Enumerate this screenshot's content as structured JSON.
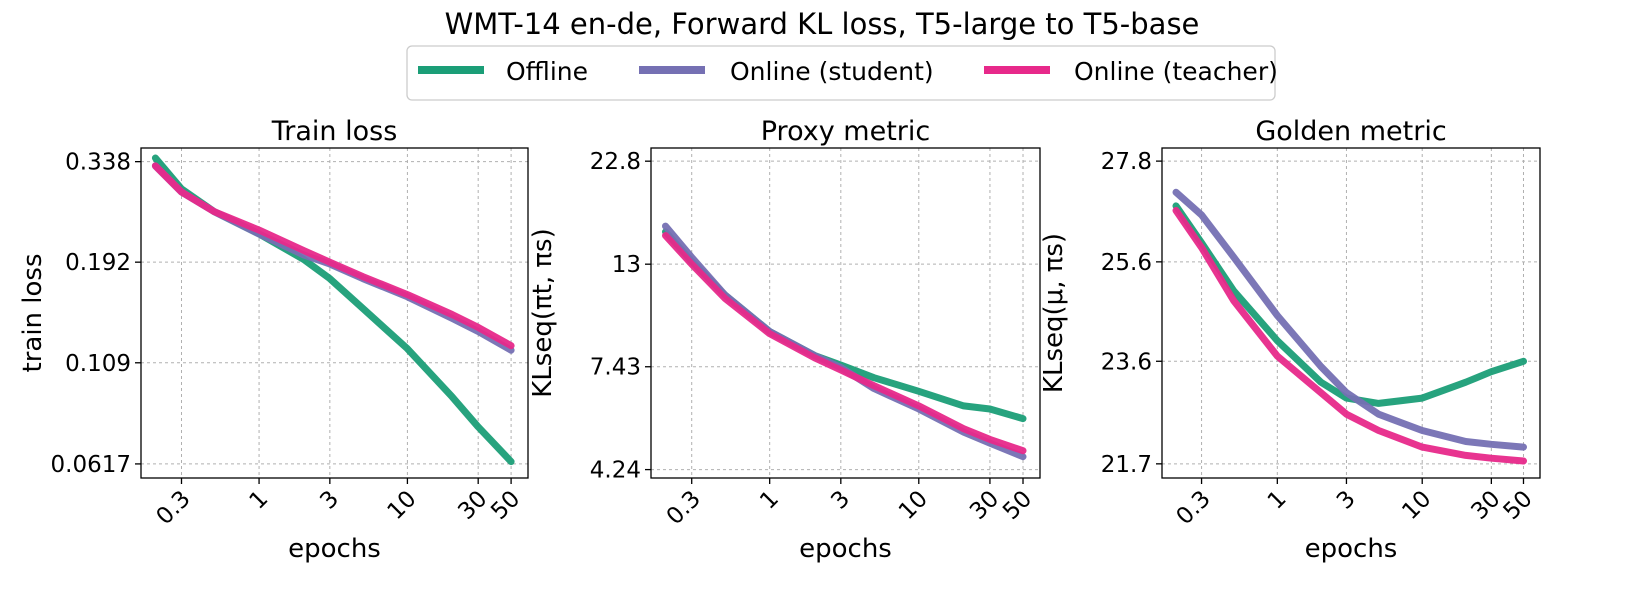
{
  "figure": {
    "title": "WMT-14 en-de, Forward KL loss, T5-large to T5-base",
    "xlabel": "epochs",
    "legend": [
      {
        "label": "Offline",
        "color": "#1b9e77"
      },
      {
        "label": "Online (student)",
        "color": "#7570b3"
      },
      {
        "label": "Online (teacher)",
        "color": "#e7298a"
      }
    ]
  },
  "chart_data": [
    {
      "type": "line",
      "title": "Train loss",
      "xlabel": "epochs",
      "ylabel": "train loss",
      "xscale": "log",
      "yscale": "log",
      "x_ticks": [
        0.3,
        1,
        3,
        10,
        30,
        50
      ],
      "x_tick_labels": [
        "0.3",
        "1",
        "3",
        "10",
        "30",
        "50"
      ],
      "y_ticks": [
        0.0617,
        0.109,
        0.192,
        0.338
      ],
      "y_tick_labels": [
        "0.0617",
        "0.109",
        "0.192",
        "0.338"
      ],
      "xlim": [
        0.16,
        65
      ],
      "ylim": [
        0.057,
        0.365
      ],
      "series": [
        {
          "name": "Offline",
          "color": "#1b9e77",
          "x": [
            0.2,
            0.3,
            0.5,
            1,
            2,
            3,
            5,
            10,
            20,
            30,
            50
          ],
          "y": [
            0.345,
            0.29,
            0.255,
            0.225,
            0.195,
            0.175,
            0.148,
            0.118,
            0.09,
            0.076,
            0.0625
          ]
        },
        {
          "name": "Online (student)",
          "color": "#7570b3",
          "x": [
            0.2,
            0.3,
            0.5,
            1,
            2,
            3,
            5,
            10,
            20,
            30,
            50
          ],
          "y": [
            0.33,
            0.285,
            0.255,
            0.225,
            0.2,
            0.19,
            0.175,
            0.158,
            0.14,
            0.13,
            0.117
          ]
        },
        {
          "name": "Online (teacher)",
          "color": "#e7298a",
          "x": [
            0.2,
            0.3,
            0.5,
            1,
            2,
            3,
            5,
            10,
            20,
            30,
            50
          ],
          "y": [
            0.33,
            0.285,
            0.255,
            0.23,
            0.205,
            0.192,
            0.177,
            0.16,
            0.143,
            0.133,
            0.12
          ]
        }
      ]
    },
    {
      "type": "line",
      "title": "Proxy metric",
      "xlabel": "epochs",
      "ylabel": "KLseq(πt, πs)",
      "xscale": "log",
      "yscale": "log",
      "x_ticks": [
        0.3,
        1,
        3,
        10,
        30,
        50
      ],
      "x_tick_labels": [
        "0.3",
        "1",
        "3",
        "10",
        "30",
        "50"
      ],
      "y_ticks": [
        4.24,
        7.43,
        13,
        22.8
      ],
      "y_tick_labels": [
        "4.24",
        "7.43",
        "13",
        "22.8"
      ],
      "xlim": [
        0.16,
        65
      ],
      "ylim": [
        4.05,
        24.5
      ],
      "series": [
        {
          "name": "Offline",
          "color": "#1b9e77",
          "x": [
            0.2,
            0.3,
            0.5,
            1,
            2,
            3,
            5,
            10,
            20,
            30,
            50
          ],
          "y": [
            15.5,
            13.2,
            11.0,
            9.0,
            7.9,
            7.5,
            7.0,
            6.5,
            6.0,
            5.9,
            5.6
          ]
        },
        {
          "name": "Online (student)",
          "color": "#7570b3",
          "x": [
            0.2,
            0.3,
            0.5,
            1,
            2,
            3,
            5,
            10,
            20,
            30,
            50
          ],
          "y": [
            16.0,
            13.5,
            11.0,
            9.0,
            7.9,
            7.4,
            6.6,
            5.9,
            5.2,
            4.9,
            4.55
          ]
        },
        {
          "name": "Online (teacher)",
          "color": "#e7298a",
          "x": [
            0.2,
            0.3,
            0.5,
            1,
            2,
            3,
            5,
            10,
            20,
            30,
            50
          ],
          "y": [
            15.2,
            13.0,
            10.8,
            8.9,
            7.8,
            7.3,
            6.7,
            6.0,
            5.3,
            5.0,
            4.7
          ]
        }
      ]
    },
    {
      "type": "line",
      "title": "Golden metric",
      "xlabel": "epochs",
      "ylabel": "KLseq(μ, πs)",
      "xscale": "log",
      "yscale": "log",
      "x_ticks": [
        0.3,
        1,
        3,
        10,
        30,
        50
      ],
      "x_tick_labels": [
        "0.3",
        "1",
        "3",
        "10",
        "30",
        "50"
      ],
      "y_ticks": [
        21.7,
        23.6,
        25.6,
        27.8
      ],
      "y_tick_labels": [
        "21.7",
        "23.6",
        "25.6",
        "27.8"
      ],
      "xlim": [
        0.16,
        65
      ],
      "ylim": [
        21.45,
        28.1
      ],
      "series": [
        {
          "name": "Offline",
          "color": "#1b9e77",
          "x": [
            0.2,
            0.3,
            0.5,
            1,
            2,
            3,
            5,
            10,
            20,
            30,
            50
          ],
          "y": [
            26.8,
            26.0,
            25.0,
            24.0,
            23.2,
            22.9,
            22.8,
            22.9,
            23.2,
            23.4,
            23.6
          ]
        },
        {
          "name": "Online (student)",
          "color": "#7570b3",
          "x": [
            0.2,
            0.3,
            0.5,
            1,
            2,
            3,
            5,
            10,
            20,
            30,
            50
          ],
          "y": [
            27.1,
            26.6,
            25.7,
            24.5,
            23.5,
            23.0,
            22.6,
            22.3,
            22.1,
            22.05,
            22.0
          ]
        },
        {
          "name": "Online (teacher)",
          "color": "#e7298a",
          "x": [
            0.2,
            0.3,
            0.5,
            1,
            2,
            3,
            5,
            10,
            20,
            30,
            50
          ],
          "y": [
            26.7,
            25.9,
            24.8,
            23.7,
            23.0,
            22.6,
            22.3,
            22.0,
            21.85,
            21.8,
            21.75
          ]
        }
      ]
    }
  ]
}
